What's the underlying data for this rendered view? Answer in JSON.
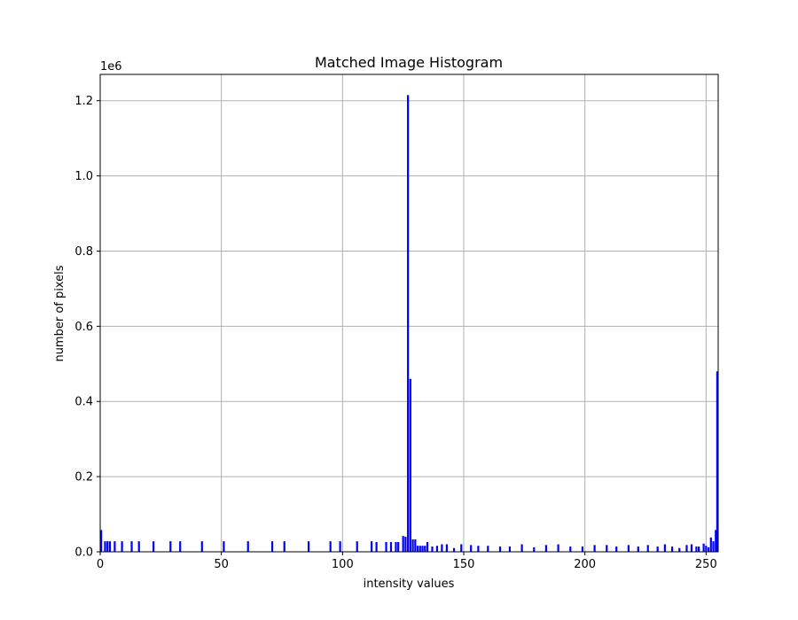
{
  "chart_data": {
    "type": "bar",
    "title": "Matched Image Histogram",
    "xlabel": "intensity values",
    "ylabel": "number of pixels",
    "y_offset_text": "1e6",
    "xlim": [
      0,
      255
    ],
    "ylim": [
      0,
      1270000
    ],
    "xticks": [
      0,
      50,
      100,
      150,
      200,
      250
    ],
    "yticks": [
      0.0,
      0.2,
      0.4,
      0.6,
      0.8,
      1.0,
      1.2
    ],
    "ytick_labels": [
      "0.0",
      "0.2",
      "0.4",
      "0.6",
      "0.8",
      "1.0",
      "1.2"
    ],
    "grid": true,
    "bar_color": "#0000ff",
    "grid_color": "#b0b0b0",
    "x": [
      0,
      2,
      3,
      4,
      6,
      9,
      13,
      16,
      22,
      29,
      33,
      42,
      51,
      61,
      71,
      76,
      86,
      95,
      99,
      106,
      112,
      114,
      118,
      120,
      122,
      123,
      125,
      126,
      127,
      128,
      129,
      130,
      131,
      132,
      133,
      134,
      135,
      137,
      139,
      141,
      143,
      146,
      149,
      153,
      156,
      160,
      165,
      169,
      174,
      179,
      184,
      189,
      194,
      199,
      204,
      209,
      213,
      218,
      222,
      226,
      230,
      233,
      236,
      239,
      242,
      244,
      246,
      247,
      249,
      250,
      251,
      252,
      253,
      254,
      255
    ],
    "values": [
      58000,
      28000,
      28000,
      28000,
      28000,
      28000,
      28000,
      28000,
      28000,
      28000,
      28000,
      28000,
      28000,
      28000,
      28000,
      28000,
      28000,
      28000,
      28000,
      28000,
      28000,
      26000,
      26000,
      26000,
      26000,
      26000,
      42000,
      40000,
      1215000,
      460000,
      33000,
      33000,
      16000,
      16000,
      16000,
      16000,
      26000,
      14000,
      16000,
      20000,
      20000,
      10000,
      20000,
      18000,
      16000,
      16000,
      14000,
      14000,
      20000,
      12000,
      18000,
      20000,
      14000,
      14000,
      18000,
      18000,
      14000,
      18000,
      14000,
      18000,
      14000,
      20000,
      14000,
      10000,
      18000,
      20000,
      14000,
      14000,
      22000,
      16000,
      12000,
      38000,
      28000,
      58000,
      480000
    ]
  }
}
